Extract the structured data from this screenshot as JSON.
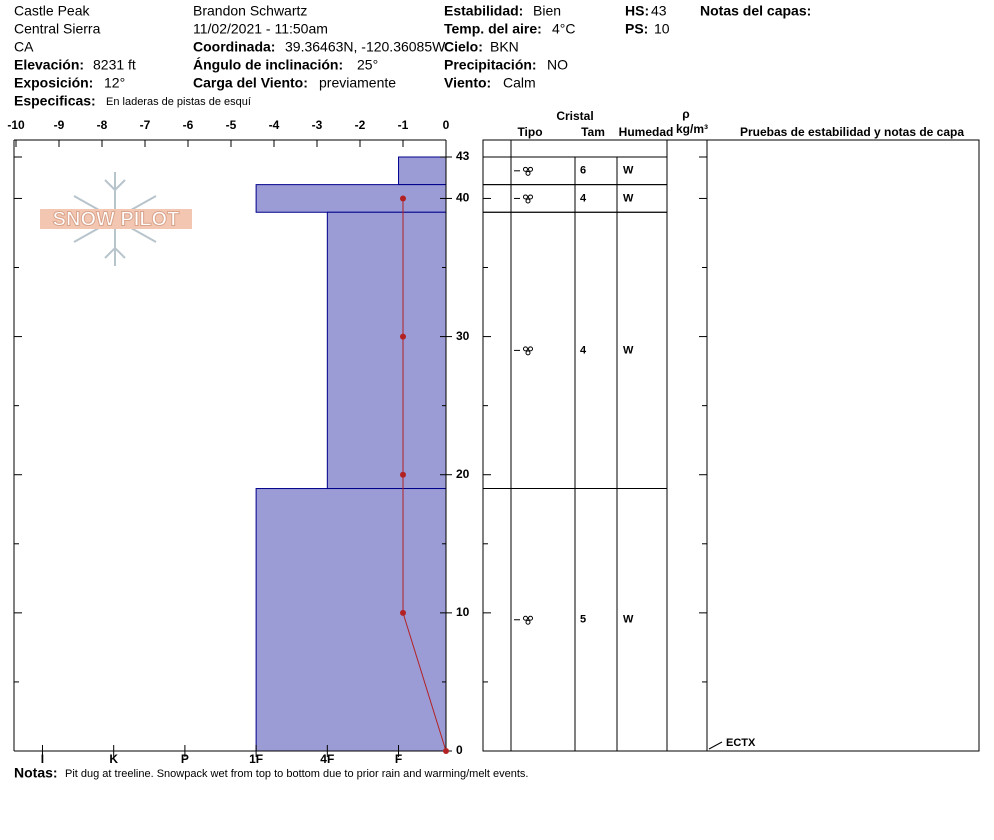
{
  "header": {
    "location": "Castle Peak",
    "range": "Central Sierra",
    "state": "CA",
    "elevation_label": "Elevación:",
    "elevation": "8231 ft",
    "aspect_label": "Exposición:",
    "aspect": "12°",
    "observer": "Brandon Schwartz",
    "datetime": "11/02/2021 - 11:50am",
    "coord_label": "Coordinada:",
    "coord": "39.36463N, -120.36085W",
    "slope_label": "Ángulo de inclinación:",
    "slope": "25°",
    "wind_load_label": "Carga del Viento:",
    "wind_load": "previamente",
    "stability_label": "Estabilidad:",
    "stability": "Bien",
    "air_temp_label": "Temp. del aire:",
    "air_temp": "4°C",
    "sky_label": "Cielo:",
    "sky": "BKN",
    "precip_label": "Precipitación:",
    "precip": "NO",
    "wind_label": "Viento:",
    "wind": "Calm",
    "hs_label": "HS:",
    "hs": "43",
    "ps_label": "PS:",
    "ps": "10",
    "layer_notes_label": "Notas del capas:",
    "specifics_label": "Especificas:",
    "specifics": "En laderas de pistas de esquí",
    "notes_label": "Notas:",
    "notes": "Pit dug at treeline. Snowpack wet from top to bottom due to prior rain and warming/melt events.",
    "logo": "SNOW PILOT"
  },
  "chart_data": {
    "type": "snow-profile",
    "bar_color": "#9b9bd6",
    "line_color": "#b22222",
    "xlim": [
      -10,
      0
    ],
    "xticks": [
      -10,
      -9,
      -8,
      -7,
      -6,
      -5,
      -4,
      -3,
      -2,
      -1,
      0
    ],
    "ylim": [
      0,
      43
    ],
    "yticks": [
      0,
      10,
      20,
      30,
      40,
      43
    ],
    "yminorticks": [
      5,
      15,
      25,
      35
    ],
    "hardness_lim": [
      0,
      9.1
    ],
    "hardness_ticks": [
      {
        "value": 8.5,
        "label": "I"
      },
      {
        "value": 7,
        "label": "K"
      },
      {
        "value": 5.5,
        "label": "P"
      },
      {
        "value": 4,
        "label": "1F"
      },
      {
        "value": 2.5,
        "label": "4F"
      },
      {
        "value": 1,
        "label": "F"
      }
    ],
    "layers": [
      {
        "top": 43,
        "bottom": 41,
        "hardness": 1,
        "grain_size": "6",
        "wetness": "W"
      },
      {
        "top": 41,
        "bottom": 39,
        "hardness": 4,
        "grain_size": "4",
        "wetness": "W"
      },
      {
        "top": 39,
        "bottom": 19,
        "hardness": 2.5,
        "grain_size": "4",
        "wetness": "W"
      },
      {
        "top": 19,
        "bottom": 0,
        "hardness": 4,
        "grain_size": "5",
        "wetness": "W"
      }
    ],
    "temperature": {
      "heights": [
        40,
        30,
        20,
        10,
        0
      ],
      "values": [
        -1,
        -1,
        -1,
        -1,
        0
      ]
    },
    "table_headers": {
      "crystal": "Cristal",
      "type": "Tipo",
      "size": "Tam",
      "wetness": "Humedad",
      "rho": "ρ",
      "density_unit": "kg/m³",
      "tests": "Pruebas de estabilidad y notas de capa"
    },
    "tests": [
      "ECTX"
    ]
  }
}
